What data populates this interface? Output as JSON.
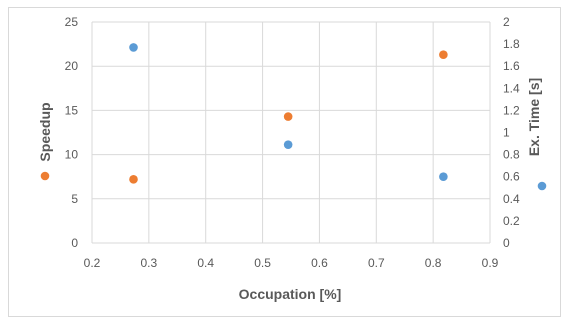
{
  "chart_data": {
    "type": "scatter",
    "xlabel": "Occupation [%]",
    "ylabel": "Speedup",
    "y2label": "Ex. Time [s]",
    "xlim": [
      0.2,
      0.9
    ],
    "ylim": [
      0,
      25
    ],
    "y2lim": [
      0,
      2
    ],
    "x_ticks": [
      "0.2",
      "0.3",
      "0.4",
      "0.5",
      "0.6",
      "0.7",
      "0.8",
      "0.9"
    ],
    "y_ticks": [
      "0",
      "5",
      "10",
      "15",
      "20",
      "25"
    ],
    "y2_ticks": [
      "0",
      "0.2",
      "0.4",
      "0.6",
      "0.8",
      "1",
      "1.2",
      "1.4",
      "1.6",
      "1.8",
      "2"
    ],
    "grid": true,
    "series": [
      {
        "axis": "left",
        "color": "#ED7D31",
        "x": [
          0.273,
          0.545,
          0.818
        ],
        "y": [
          7.2,
          14.3,
          21.3
        ]
      },
      {
        "axis": "right",
        "color": "#5B9BD5",
        "x": [
          0.273,
          0.545,
          0.818
        ],
        "y": [
          1.77,
          0.89,
          0.6
        ]
      }
    ]
  }
}
